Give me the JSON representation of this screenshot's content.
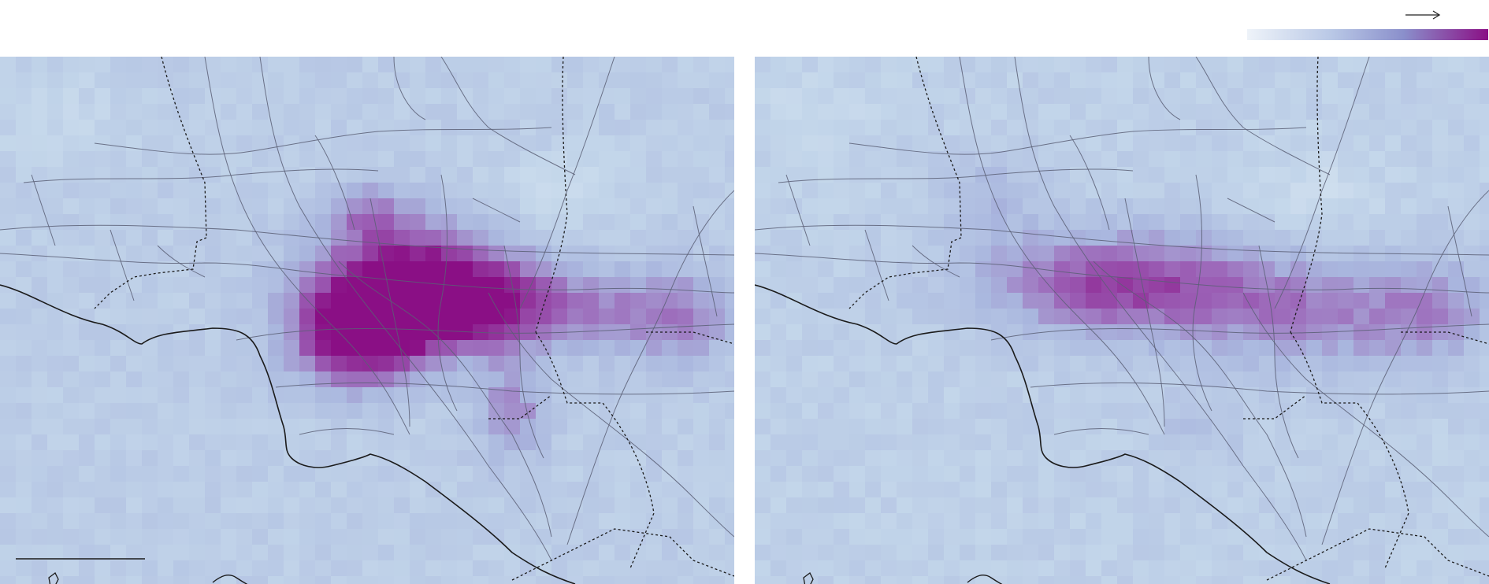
{
  "figure": {
    "panels": [
      {
        "name": "left-map",
        "intensity": "high"
      },
      {
        "name": "right-map",
        "intensity": "moderate"
      }
    ],
    "legend": {
      "colorbar": {
        "low_color": "#e6eef6",
        "mid_color": "#8fa1d2",
        "high_color": "#8a0f85"
      },
      "arrow_icon": "right-arrow-icon"
    },
    "colors": {
      "background_low": "#c3d6ea",
      "background_mid": "#a9b6de",
      "plume_mid": "#9b5fb5",
      "plume_high": "#8a0f85",
      "road": "#5a5f75",
      "coast": "#1b1b1b",
      "county_border": "#1b1b1b"
    },
    "scale_bar": {
      "visible": true
    }
  }
}
